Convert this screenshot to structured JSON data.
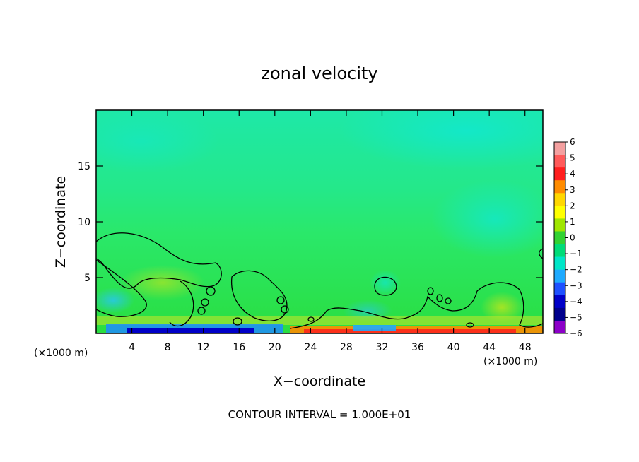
{
  "chart_data": {
    "type": "heatmap",
    "title": "zonal velocity",
    "xlabel": "X−coordinate",
    "ylabel": "Z−coordinate",
    "x_units": "(×1000 m)",
    "x_units_right": "(×1000 m)",
    "xlim": [
      0,
      50
    ],
    "ylim": [
      0,
      20
    ],
    "x_ticks": [
      4,
      8,
      12,
      16,
      20,
      24,
      28,
      32,
      36,
      40,
      44,
      48
    ],
    "y_ticks": [
      5,
      10,
      15
    ],
    "colorbar": {
      "levels": [
        6,
        5,
        4,
        3,
        2,
        1,
        0,
        -1,
        -2,
        -3,
        -4,
        -5,
        -6
      ],
      "level_labels": [
        "6",
        "5",
        "4",
        "3",
        "2",
        "1",
        "0",
        "−1",
        "−2",
        "−3",
        "−4",
        "−5",
        "−6"
      ],
      "colors": [
        "#f4a0a0",
        "#ff5a5a",
        "#ff1e1e",
        "#ff8c00",
        "#ffd700",
        "#ffff00",
        "#a0e600",
        "#32d232",
        "#00dc78",
        "#00e6c8",
        "#1eaaff",
        "#1e50ff",
        "#0000c8",
        "#00008c",
        "#8c00c8"
      ]
    },
    "annotation": "CONTOUR INTERVAL = 1.000E+01",
    "grid": false,
    "legend_position": "right"
  },
  "colors": {
    "background_field": "#2ee86a",
    "upper_field": "#1fe8a8",
    "upper_field_bright": "#14e8c0",
    "lower_field": "#1cd83a",
    "contour": "#000000"
  }
}
